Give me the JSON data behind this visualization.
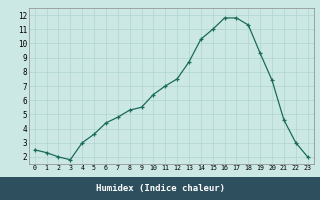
{
  "x": [
    0,
    1,
    2,
    3,
    4,
    5,
    6,
    7,
    8,
    9,
    10,
    11,
    12,
    13,
    14,
    15,
    16,
    17,
    18,
    19,
    20,
    21,
    22,
    23
  ],
  "y": [
    2.5,
    2.3,
    2.0,
    1.8,
    3.0,
    3.6,
    4.4,
    4.8,
    5.3,
    5.5,
    6.4,
    7.0,
    7.5,
    8.7,
    10.3,
    11.0,
    11.8,
    11.8,
    11.3,
    9.3,
    7.4,
    4.6,
    3.0,
    2.0
  ],
  "xlabel": "Humidex (Indice chaleur)",
  "xlim": [
    -0.5,
    23.5
  ],
  "ylim": [
    1.5,
    12.5
  ],
  "yticks": [
    2,
    3,
    4,
    5,
    6,
    7,
    8,
    9,
    10,
    11,
    12
  ],
  "xticks": [
    0,
    1,
    2,
    3,
    4,
    5,
    6,
    7,
    8,
    9,
    10,
    11,
    12,
    13,
    14,
    15,
    16,
    17,
    18,
    19,
    20,
    21,
    22,
    23
  ],
  "line_color": "#1a6b5a",
  "bg_color": "#cce8e4",
  "grid_color": "#b0d4d0",
  "xlabel_bg": "#2e4f5e",
  "xlabel_color": "#ffffff"
}
